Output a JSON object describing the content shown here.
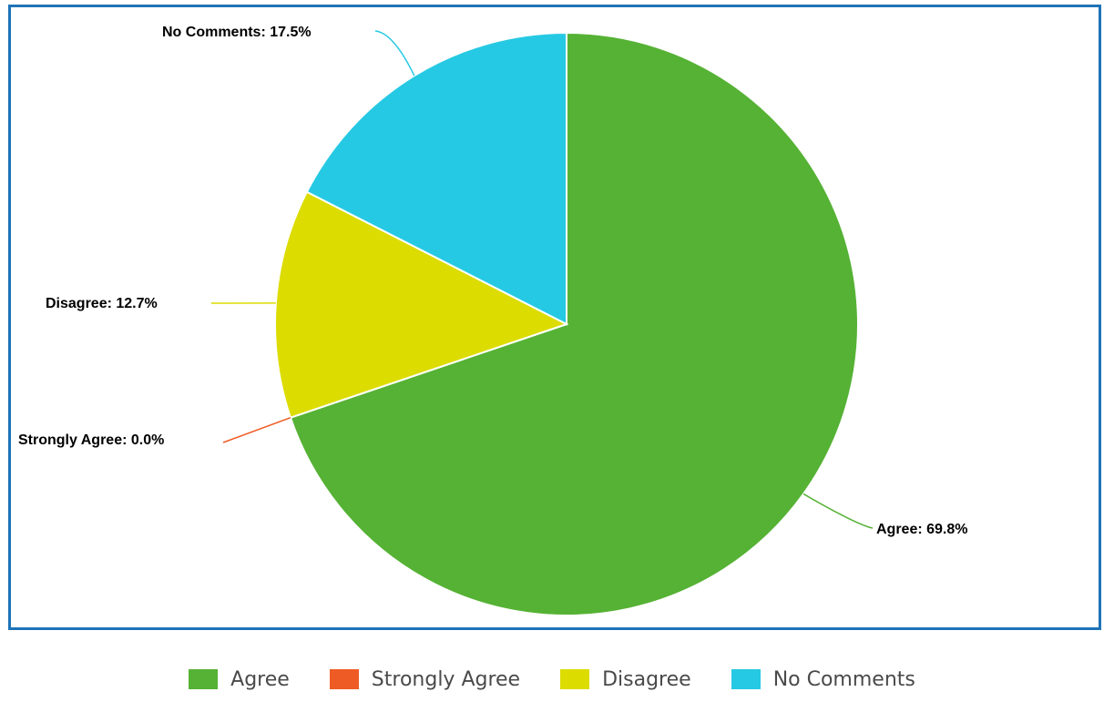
{
  "chart_data": {
    "type": "pie",
    "title": "",
    "categories": [
      "Agree",
      "Strongly Agree",
      "Disagree",
      "No Comments"
    ],
    "values": [
      69.8,
      0.0,
      12.7,
      17.5
    ],
    "unit": "%",
    "colors": [
      "#55b234",
      "#ef5b24",
      "#dcdc00",
      "#26c9e3"
    ],
    "data_labels": [
      "Agree: 69.8%",
      "Strongly Agree: 0.0%",
      "Disagree: 12.7%",
      "No Comments: 17.5%"
    ],
    "start_angle": "12 o'clock, clockwise",
    "legend_position": "bottom"
  },
  "legend": {
    "items": [
      {
        "label": "Agree",
        "color": "#55b234"
      },
      {
        "label": "Strongly Agree",
        "color": "#ef5b24"
      },
      {
        "label": "Disagree",
        "color": "#dcdc00"
      },
      {
        "label": "No Comments",
        "color": "#26c9e3"
      }
    ]
  },
  "frame": {
    "border_color": "#1f73b7"
  }
}
